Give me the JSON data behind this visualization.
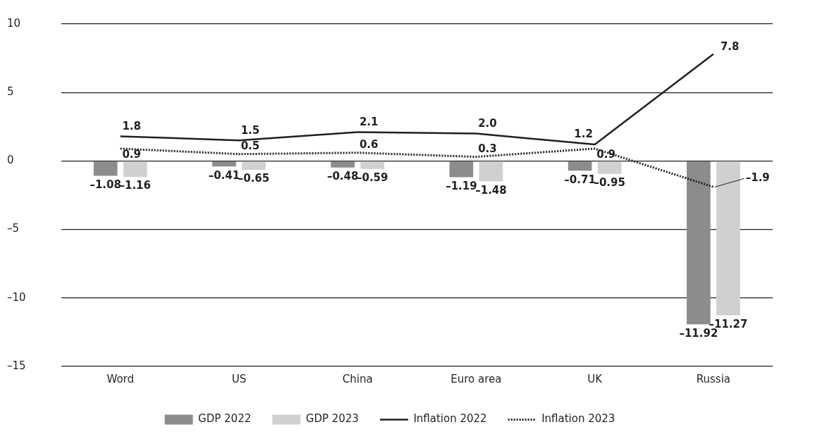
{
  "chart_data": {
    "type": "bar",
    "categories": [
      "Word",
      "US",
      "China",
      "Euro area",
      "UK",
      "Russia"
    ],
    "series": [
      {
        "name": "GDP 2022",
        "color": "#8c8c8c",
        "values": [
          -1.08,
          -0.41,
          -0.48,
          -1.19,
          -0.71,
          -11.92
        ],
        "value_labels": [
          "–1.08",
          "–0.41",
          "–0.48",
          "–1.19",
          "–0.71",
          "–11.92"
        ]
      },
      {
        "name": "GDP 2023",
        "color": "#d0d0d0",
        "values": [
          -1.16,
          -0.65,
          -0.59,
          -1.48,
          -0.95,
          -11.27
        ],
        "value_labels": [
          "–1.16",
          "–0.65",
          "–0.59",
          "–1.48",
          "–0.95",
          "–11.27"
        ]
      },
      {
        "name": "Inflation 2022",
        "type": "line",
        "color": "#231f20",
        "line_style": "solid",
        "values": [
          1.8,
          1.5,
          2.1,
          2.0,
          1.2,
          7.8
        ],
        "value_labels": [
          "1.8",
          "1.5",
          "2.1",
          "2.0",
          "1.2",
          "7.8"
        ]
      },
      {
        "name": "Inflation 2023",
        "type": "line",
        "color": "#231f20",
        "line_style": "dotted",
        "values": [
          0.9,
          0.5,
          0.6,
          0.3,
          0.9,
          -1.9
        ],
        "value_labels": [
          "0.9",
          "0.5",
          "0.6",
          "0.3",
          "0.9",
          "–1.9"
        ]
      }
    ],
    "ylim": [
      -15,
      10
    ],
    "yticks": [
      {
        "value": -15,
        "label": "–15"
      },
      {
        "value": -10,
        "label": "–10"
      },
      {
        "value": -5,
        "label": "–5"
      },
      0,
      5,
      10
    ],
    "grid": "y",
    "legend": "bottom",
    "marker": "none"
  }
}
